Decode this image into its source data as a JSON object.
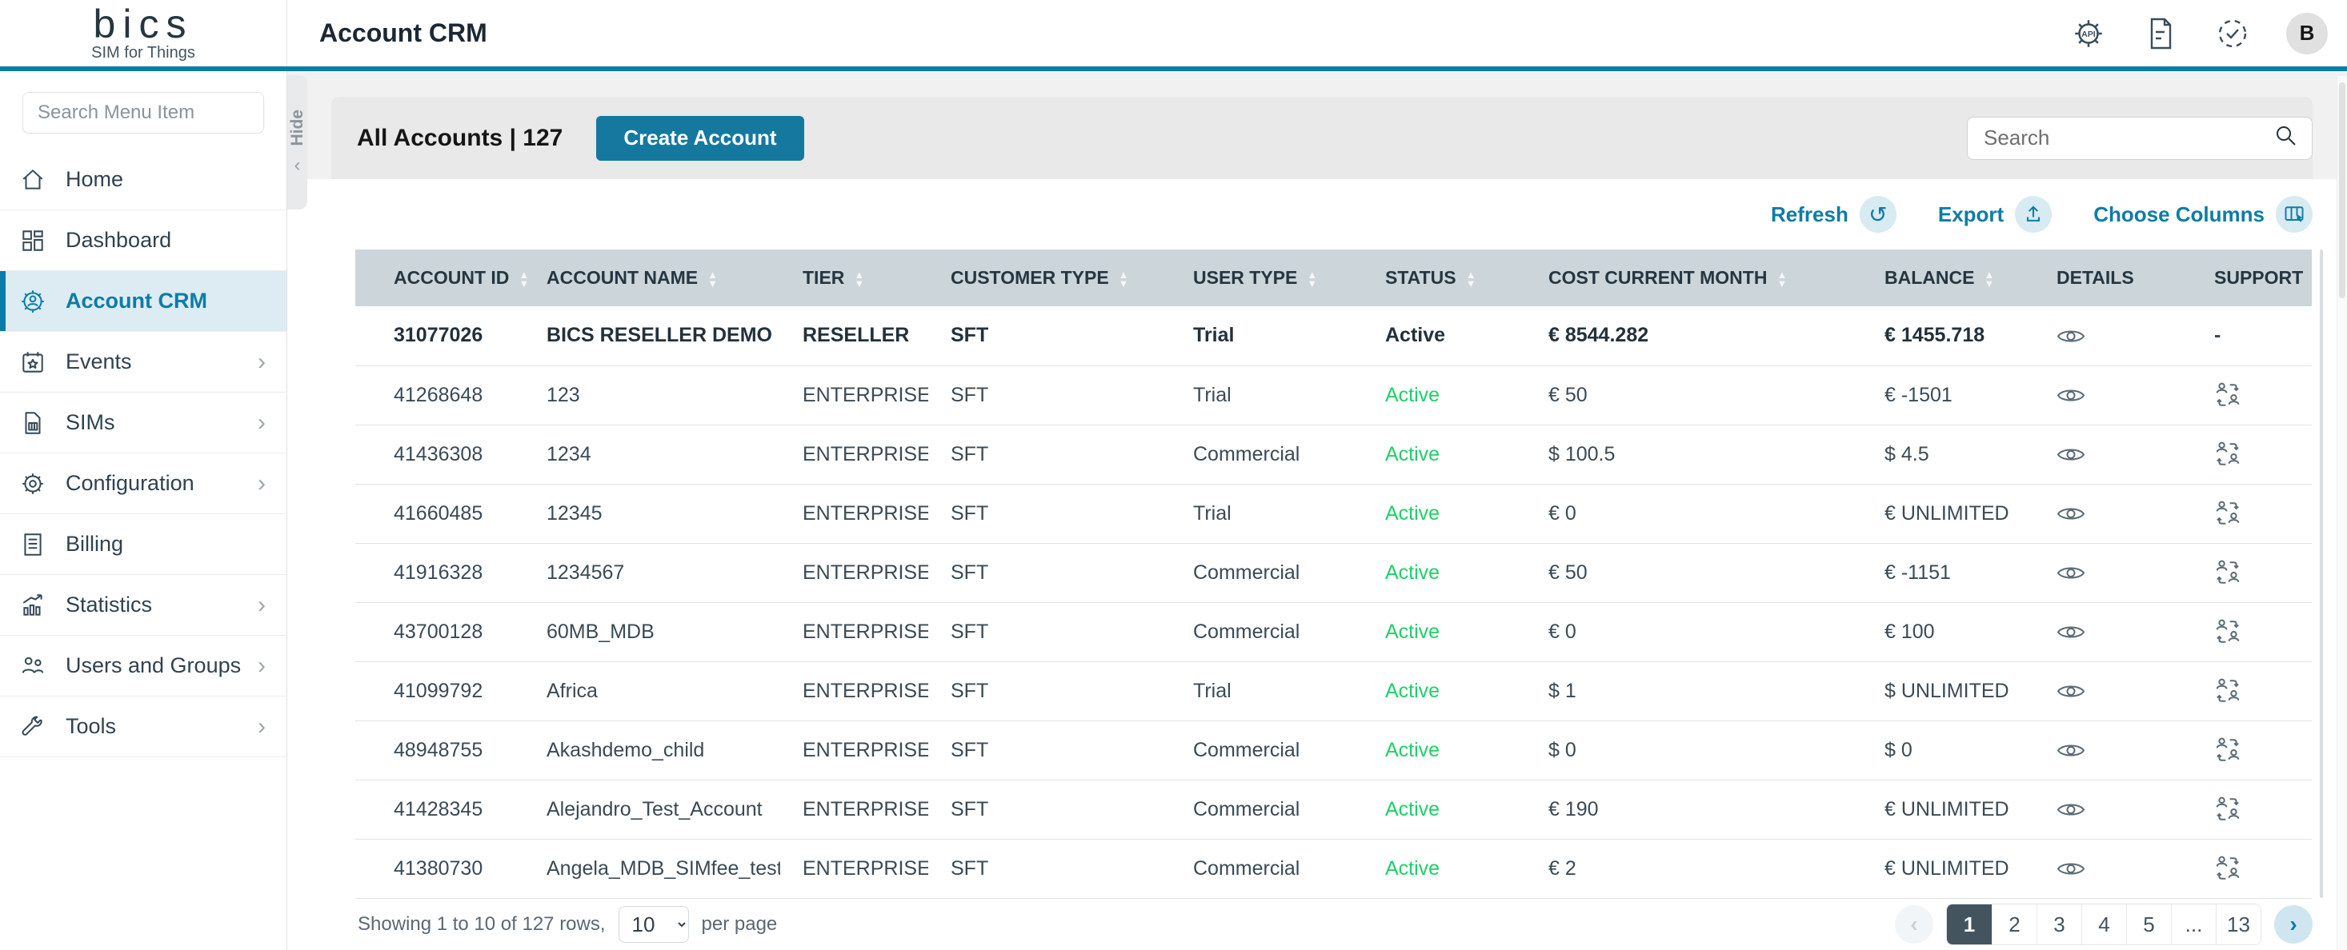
{
  "colors": {
    "accent": "#0D7CA6",
    "accent_deep": "#0A7DA4",
    "button_bg": "#15799F",
    "status_green": "#1FD068",
    "header_bg": "#CCD5D9",
    "active_nav_bg": "#DCECF2",
    "pagination_active_bg": "#44545F",
    "icon_circle_bg": "#D8EAF2"
  },
  "topbar": {
    "logo_text": "bics",
    "logo_subtitle": "SIM for Things",
    "title": "Account CRM",
    "avatar_initial": "B",
    "icons": [
      "api-settings-icon",
      "release-notes-icon",
      "service-status-icon"
    ]
  },
  "sidebar": {
    "search_placeholder": "Search Menu Item",
    "hide_label": "Hide",
    "items": [
      {
        "label": "Home",
        "icon": "home-icon",
        "active": false,
        "has_submenu": false
      },
      {
        "label": "Dashboard",
        "icon": "dashboard-icon",
        "active": false,
        "has_submenu": false
      },
      {
        "label": "Account CRM",
        "icon": "account-crm-icon",
        "active": true,
        "has_submenu": false
      },
      {
        "label": "Events",
        "icon": "events-icon",
        "active": false,
        "has_submenu": true
      },
      {
        "label": "SIMs",
        "icon": "sims-icon",
        "active": false,
        "has_submenu": true
      },
      {
        "label": "Configuration",
        "icon": "configuration-icon",
        "active": false,
        "has_submenu": true
      },
      {
        "label": "Billing",
        "icon": "billing-icon",
        "active": false,
        "has_submenu": false
      },
      {
        "label": "Statistics",
        "icon": "statistics-icon",
        "active": false,
        "has_submenu": true
      },
      {
        "label": "Users and Groups",
        "icon": "users-groups-icon",
        "active": false,
        "has_submenu": true
      },
      {
        "label": "Tools",
        "icon": "tools-icon",
        "active": false,
        "has_submenu": true
      }
    ]
  },
  "toolbar": {
    "title": "All Accounts | 127",
    "create_button_label": "Create Account",
    "search_placeholder": "Search"
  },
  "actions": [
    {
      "label": "Refresh",
      "icon": "refresh-icon"
    },
    {
      "label": "Export",
      "icon": "export-icon"
    },
    {
      "label": "Choose Columns",
      "icon": "choose-columns-icon"
    }
  ],
  "table": {
    "details_icon": "eye-icon",
    "support_icon": "user-switch-icon",
    "columns": [
      {
        "label": "ACCOUNT ID",
        "sortable": true
      },
      {
        "label": "ACCOUNT NAME",
        "sortable": true
      },
      {
        "label": "TIER",
        "sortable": true
      },
      {
        "label": "CUSTOMER TYPE",
        "sortable": true
      },
      {
        "label": "USER TYPE",
        "sortable": true
      },
      {
        "label": "STATUS",
        "sortable": true
      },
      {
        "label": "COST CURRENT MONTH",
        "sortable": true
      },
      {
        "label": "BALANCE",
        "sortable": true
      },
      {
        "label": "DETAILS",
        "sortable": false
      },
      {
        "label": "SUPPORT",
        "sortable": false
      }
    ],
    "rows": [
      {
        "account_id": "31077026",
        "account_name": "BICS RESELLER DEMO",
        "tier": "RESELLER",
        "customer_type": "SFT",
        "user_type": "Trial",
        "status": "Active",
        "cost_current_month": "€ 8544.282",
        "balance": "€ 1455.718",
        "support": "-",
        "emphasis": true
      },
      {
        "account_id": "41268648",
        "account_name": "123",
        "tier": "ENTERPRISE",
        "customer_type": "SFT",
        "user_type": "Trial",
        "status": "Active",
        "cost_current_month": "€ 50",
        "balance": "€ -1501",
        "support": "user-switch-icon",
        "emphasis": false
      },
      {
        "account_id": "41436308",
        "account_name": "1234",
        "tier": "ENTERPRISE",
        "customer_type": "SFT",
        "user_type": "Commercial",
        "status": "Active",
        "cost_current_month": "$ 100.5",
        "balance": "$ 4.5",
        "support": "user-switch-icon",
        "emphasis": false
      },
      {
        "account_id": "41660485",
        "account_name": "12345",
        "tier": "ENTERPRISE",
        "customer_type": "SFT",
        "user_type": "Trial",
        "status": "Active",
        "cost_current_month": "€ 0",
        "balance": "€ UNLIMITED",
        "support": "user-switch-icon",
        "emphasis": false
      },
      {
        "account_id": "41916328",
        "account_name": "1234567",
        "tier": "ENTERPRISE",
        "customer_type": "SFT",
        "user_type": "Commercial",
        "status": "Active",
        "cost_current_month": "€ 50",
        "balance": "€ -1151",
        "support": "user-switch-icon",
        "emphasis": false
      },
      {
        "account_id": "43700128",
        "account_name": "60MB_MDB",
        "tier": "ENTERPRISE",
        "customer_type": "SFT",
        "user_type": "Commercial",
        "status": "Active",
        "cost_current_month": "€ 0",
        "balance": "€ 100",
        "support": "user-switch-icon",
        "emphasis": false
      },
      {
        "account_id": "41099792",
        "account_name": "Africa",
        "tier": "ENTERPRISE",
        "customer_type": "SFT",
        "user_type": "Trial",
        "status": "Active",
        "cost_current_month": "$ 1",
        "balance": "$ UNLIMITED",
        "support": "user-switch-icon",
        "emphasis": false
      },
      {
        "account_id": "48948755",
        "account_name": "Akashdemo_child",
        "tier": "ENTERPRISE",
        "customer_type": "SFT",
        "user_type": "Commercial",
        "status": "Active",
        "cost_current_month": "$ 0",
        "balance": "$ 0",
        "support": "user-switch-icon",
        "emphasis": false
      },
      {
        "account_id": "41428345",
        "account_name": "Alejandro_Test_Account",
        "tier": "ENTERPRISE",
        "customer_type": "SFT",
        "user_type": "Commercial",
        "status": "Active",
        "cost_current_month": "€ 190",
        "balance": "€ UNLIMITED",
        "support": "user-switch-icon",
        "emphasis": false
      },
      {
        "account_id": "41380730",
        "account_name": "Angela_MDB_SIMfee_test",
        "tier": "ENTERPRISE",
        "customer_type": "SFT",
        "user_type": "Commercial",
        "status": "Active",
        "cost_current_month": "€ 2",
        "balance": "€ UNLIMITED",
        "support": "user-switch-icon",
        "emphasis": false
      }
    ]
  },
  "footer": {
    "showing_text": "Showing 1 to 10 of 127 rows,",
    "per_page_selected": "10",
    "per_page_suffix": "per page"
  },
  "pagination": {
    "prev_disabled": true,
    "pages": [
      "1",
      "2",
      "3",
      "4",
      "5",
      "...",
      "13"
    ],
    "active": "1"
  }
}
